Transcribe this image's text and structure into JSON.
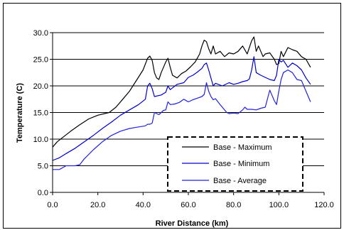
{
  "chart_data": {
    "type": "line",
    "title": "",
    "xlabel": "River Distance (km)",
    "ylabel": "Temperature (C)",
    "xlim": [
      0,
      120
    ],
    "ylim": [
      0,
      30
    ],
    "x_ticks": [
      "0.0",
      "20.0",
      "40.0",
      "60.0",
      "80.0",
      "100.0",
      "120.0"
    ],
    "y_ticks": [
      "0.0",
      "5.0",
      "10.0",
      "15.0",
      "20.0",
      "25.0",
      "30.0"
    ],
    "grid": "horizontal",
    "legend_position": "lower-right",
    "series": [
      {
        "name": "Base - Maximum",
        "color": "#000000",
        "x": [
          0,
          2,
          5,
          8,
          12,
          16,
          20,
          25,
          28,
          31,
          34,
          37,
          40,
          42,
          43,
          44,
          45,
          46,
          47,
          48,
          50,
          51,
          52,
          53,
          55,
          57,
          59,
          61,
          63,
          65,
          66,
          67,
          68,
          69,
          70,
          71,
          72,
          74,
          76,
          78,
          80,
          82,
          84,
          86,
          88,
          89,
          90,
          91,
          92,
          93,
          94,
          96,
          98,
          99,
          100,
          101,
          102,
          104,
          106,
          108,
          110,
          112,
          114
        ],
        "y": [
          8.5,
          9.5,
          10.5,
          11.5,
          12.7,
          13.8,
          14.5,
          15.0,
          16.0,
          17.5,
          19.0,
          21.0,
          23.0,
          25.2,
          25.6,
          24.8,
          22.5,
          21.5,
          21.2,
          22.5,
          24.5,
          25.2,
          23.5,
          22.0,
          21.5,
          22.3,
          22.8,
          23.6,
          24.5,
          26.0,
          27.5,
          28.6,
          28.3,
          27.0,
          26.0,
          27.5,
          26.0,
          26.5,
          25.5,
          26.2,
          26.0,
          26.5,
          27.5,
          26.0,
          28.5,
          29.2,
          26.5,
          27.5,
          26.5,
          25.5,
          26.0,
          26.2,
          25.0,
          24.0,
          24.2,
          26.5,
          25.5,
          27.2,
          26.8,
          26.5,
          25.5,
          25.0,
          23.5
        ]
      },
      {
        "name": "Base - Minimum",
        "color": "#0000cc",
        "x": [
          0,
          3,
          6,
          10,
          14,
          18,
          22,
          26,
          30,
          34,
          38,
          41,
          42,
          43,
          44,
          45,
          48,
          50,
          51,
          52,
          55,
          58,
          60,
          62,
          64,
          66,
          67,
          68,
          69,
          70,
          71,
          72,
          75,
          78,
          80,
          82,
          84,
          86,
          87,
          88,
          89,
          90,
          92,
          94,
          96,
          98,
          99,
          100,
          101,
          102,
          104,
          106,
          108,
          110,
          112,
          114
        ],
        "y": [
          6.0,
          6.5,
          7.3,
          8.3,
          9.5,
          10.7,
          12.0,
          13.2,
          14.5,
          15.5,
          16.5,
          17.5,
          20.0,
          20.5,
          19.5,
          18.0,
          18.3,
          18.8,
          20.0,
          19.3,
          20.3,
          20.6,
          21.6,
          22.0,
          22.6,
          23.3,
          24.0,
          24.3,
          23.0,
          21.5,
          20.0,
          20.5,
          20.0,
          20.6,
          20.3,
          20.5,
          20.8,
          21.0,
          21.3,
          23.0,
          25.5,
          22.5,
          22.0,
          21.6,
          21.2,
          21.0,
          22.0,
          25.0,
          24.5,
          24.8,
          23.5,
          24.3,
          23.8,
          23.0,
          21.5,
          20.3
        ]
      },
      {
        "name": "Base - Average",
        "color": "#2222dd",
        "x": [
          0,
          3,
          6,
          8,
          10,
          12,
          14,
          18,
          22,
          26,
          30,
          34,
          38,
          41,
          42,
          43,
          44,
          45,
          47,
          49,
          50,
          51,
          52,
          54,
          56,
          58,
          60,
          62,
          64,
          66,
          67,
          68,
          69,
          70,
          71,
          72,
          74,
          76,
          77,
          78,
          80,
          82,
          84,
          85,
          86,
          88,
          90,
          92,
          94,
          96,
          98,
          99,
          100,
          101,
          102,
          104,
          106,
          108,
          110,
          112,
          114
        ],
        "y": [
          4.3,
          4.3,
          5.0,
          5.0,
          5.0,
          5.2,
          6.3,
          8.0,
          9.5,
          10.7,
          11.5,
          12.0,
          12.3,
          12.5,
          12.8,
          12.8,
          13.0,
          15.0,
          14.6,
          15.4,
          15.5,
          17.0,
          16.5,
          16.6,
          16.9,
          17.5,
          17.0,
          17.4,
          17.7,
          18.0,
          18.4,
          20.6,
          19.0,
          18.0,
          17.4,
          17.6,
          16.5,
          15.5,
          15.0,
          14.8,
          14.9,
          14.8,
          15.5,
          16.0,
          15.6,
          15.6,
          15.5,
          15.8,
          16.0,
          19.2,
          17.2,
          16.5,
          19.0,
          21.2,
          22.5,
          23.0,
          22.5,
          21.2,
          21.0,
          19.0,
          17.0
        ]
      }
    ]
  }
}
